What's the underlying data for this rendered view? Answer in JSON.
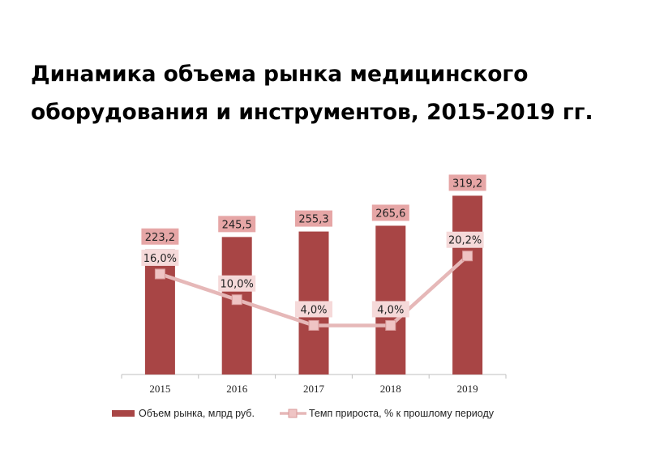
{
  "chart_data": {
    "type": "bar",
    "title_lines": [
      "Динамика объема рынка медицинского",
      "оборудования и инструментов, 2015-2019 гг."
    ],
    "categories": [
      "2015",
      "2016",
      "2017",
      "2018",
      "2019"
    ],
    "series": [
      {
        "name": "Объем рынка, млрд руб.",
        "type": "bar",
        "values": [
          223.2,
          245.5,
          255.3,
          265.6,
          319.2
        ],
        "labels": [
          "223,2",
          "245,5",
          "255,3",
          "265,6",
          "319,2"
        ],
        "color": "#A84545",
        "label_bg": "#E6A6A6"
      },
      {
        "name": "Темп прироста, % к прошлому периоду",
        "type": "line",
        "values": [
          16.0,
          10.0,
          4.0,
          4.0,
          20.2
        ],
        "labels": [
          "16,0%",
          "10,0%",
          "4,0%",
          "4,0%",
          "20,2%"
        ],
        "color": "#E6B8B8",
        "label_bg": "#F5D9D9"
      }
    ],
    "legend_position": "bottom",
    "grid": false
  }
}
